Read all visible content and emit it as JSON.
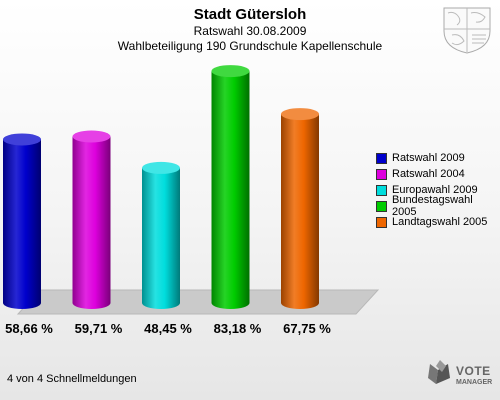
{
  "header": {
    "title": "Stadt Gütersloh",
    "subtitle": "Ratswahl 30.08.2009",
    "subtitle2": "Wahlbeteiligung 190 Grundschule Kapellenschule"
  },
  "chart_data": {
    "type": "bar",
    "title": "Stadt Gütersloh",
    "categories": [
      "Ratswahl 2009",
      "Ratswahl 2004",
      "Europawahl 2009",
      "Bundestagswahl 2005",
      "Landtagswahl 2005"
    ],
    "values": [
      58.66,
      59.71,
      48.45,
      83.18,
      67.75
    ],
    "value_labels": [
      "58,66 %",
      "59,71 %",
      "48,45 %",
      "83,18 %",
      "67,75 %"
    ],
    "colors": [
      "#0000cc",
      "#dd00dd",
      "#00dddd",
      "#00cc00",
      "#ee6600"
    ],
    "ylim": [
      0,
      85
    ],
    "grid": false,
    "legend_position": "right"
  },
  "footer": {
    "text": "4 von 4 Schnellmeldungen"
  },
  "logo": {
    "line1": "VOTE",
    "line2": "MANAGER"
  }
}
